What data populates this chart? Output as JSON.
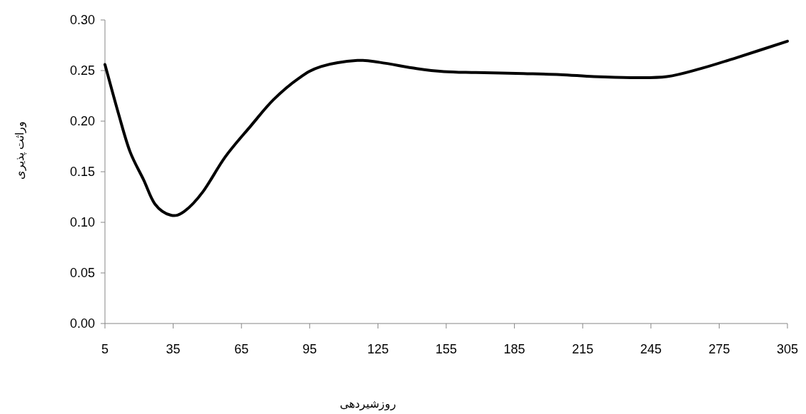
{
  "chart_data": {
    "type": "line",
    "xlabel": "روزشیردهی",
    "ylabel": "وراثت پذیری",
    "x": [
      5,
      11,
      16,
      22,
      27,
      34,
      40,
      48,
      58,
      69,
      79,
      90,
      100,
      116,
      126,
      142,
      154,
      168,
      189,
      205,
      220,
      236,
      252,
      267,
      283,
      305
    ],
    "series": [
      {
        "color": "#000000",
        "values": [
          0.256,
          0.207,
          0.17,
          0.142,
          0.118,
          0.107,
          0.111,
          0.13,
          0.165,
          0.195,
          0.221,
          0.242,
          0.254,
          0.26,
          0.258,
          0.252,
          0.249,
          0.248,
          0.247,
          0.246,
          0.244,
          0.243,
          0.244,
          0.252,
          0.263,
          0.279
        ]
      }
    ],
    "xlim": [
      5,
      305
    ],
    "xticks": [
      5,
      35,
      65,
      95,
      125,
      155,
      185,
      215,
      245,
      275,
      305
    ],
    "ylim": [
      0,
      0.3
    ],
    "yticks": [
      {
        "value": 0,
        "label": "0.00"
      },
      {
        "value": 0.05,
        "label": "0.05"
      },
      {
        "value": 0.1,
        "label": "0.10"
      },
      {
        "value": 0.15,
        "label": "0.15"
      },
      {
        "value": 0.2,
        "label": "0.20"
      },
      {
        "value": 0.25,
        "label": "0.25"
      },
      {
        "value": 0.3,
        "label": "0.30"
      }
    ],
    "grid": false,
    "marker": "none",
    "line_style": "solid"
  }
}
